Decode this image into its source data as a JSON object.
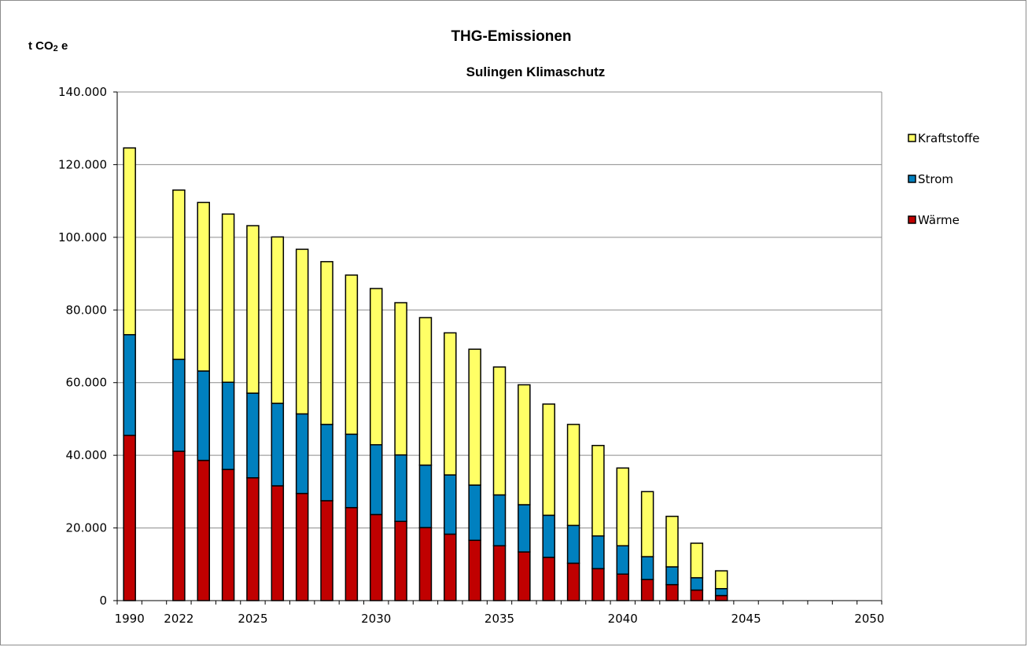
{
  "chart_data": {
    "type": "bar",
    "stacked": true,
    "title": "THG-Emissionen",
    "subtitle": "Sulingen Klimaschutz",
    "ylabel_prefix": "t CO",
    "ylabel_sub": "2",
    "ylabel_suffix": " e",
    "ylim": [
      0,
      140000
    ],
    "y_ticks": [
      0,
      20000,
      40000,
      60000,
      80000,
      100000,
      120000,
      140000
    ],
    "y_tick_labels": [
      "0",
      "20.000",
      "40.000",
      "60.000",
      "80.000",
      "100.000",
      "120.000",
      "140.000"
    ],
    "x_tick_labels": [
      "1990",
      "2022",
      "2025",
      "2030",
      "2035",
      "2040",
      "2045",
      "2050"
    ],
    "grid": true,
    "legend_position": "right",
    "categories": [
      "1990",
      "",
      "2022",
      "2023",
      "2024",
      "2025",
      "2026",
      "2027",
      "2028",
      "2029",
      "2030",
      "2031",
      "2032",
      "2033",
      "2034",
      "2035",
      "2036",
      "2037",
      "2038",
      "2039",
      "2040",
      "2041",
      "2042",
      "2043",
      "2044",
      "2045",
      "2046",
      "2047",
      "2048",
      "2049",
      "2050"
    ],
    "series": [
      {
        "name": "Wärme",
        "color": "#c00000",
        "values": [
          45500,
          0,
          41100,
          38600,
          36100,
          33800,
          31600,
          29500,
          27500,
          25600,
          23700,
          21800,
          20100,
          18300,
          16600,
          15100,
          13400,
          11900,
          10300,
          8800,
          7300,
          5800,
          4400,
          2900,
          1400,
          0,
          0,
          0,
          0,
          0,
          0
        ]
      },
      {
        "name": "Strom",
        "color": "#0080bf",
        "values": [
          27700,
          0,
          25300,
          24600,
          24000,
          23300,
          22700,
          21900,
          21000,
          20200,
          19200,
          18300,
          17200,
          16300,
          15200,
          14000,
          13000,
          11600,
          10400,
          9000,
          7800,
          6300,
          4900,
          3400,
          1900,
          0,
          0,
          0,
          0,
          0,
          0
        ]
      },
      {
        "name": "Kraftstoffe",
        "color": "#ffff66",
        "values": [
          51400,
          0,
          46600,
          46400,
          46300,
          46100,
          45800,
          45300,
          44800,
          43800,
          43000,
          41900,
          40600,
          39100,
          37400,
          35200,
          33000,
          30600,
          27800,
          24900,
          21400,
          17900,
          13900,
          9500,
          4900,
          0,
          0,
          0,
          0,
          0,
          0
        ]
      }
    ]
  }
}
